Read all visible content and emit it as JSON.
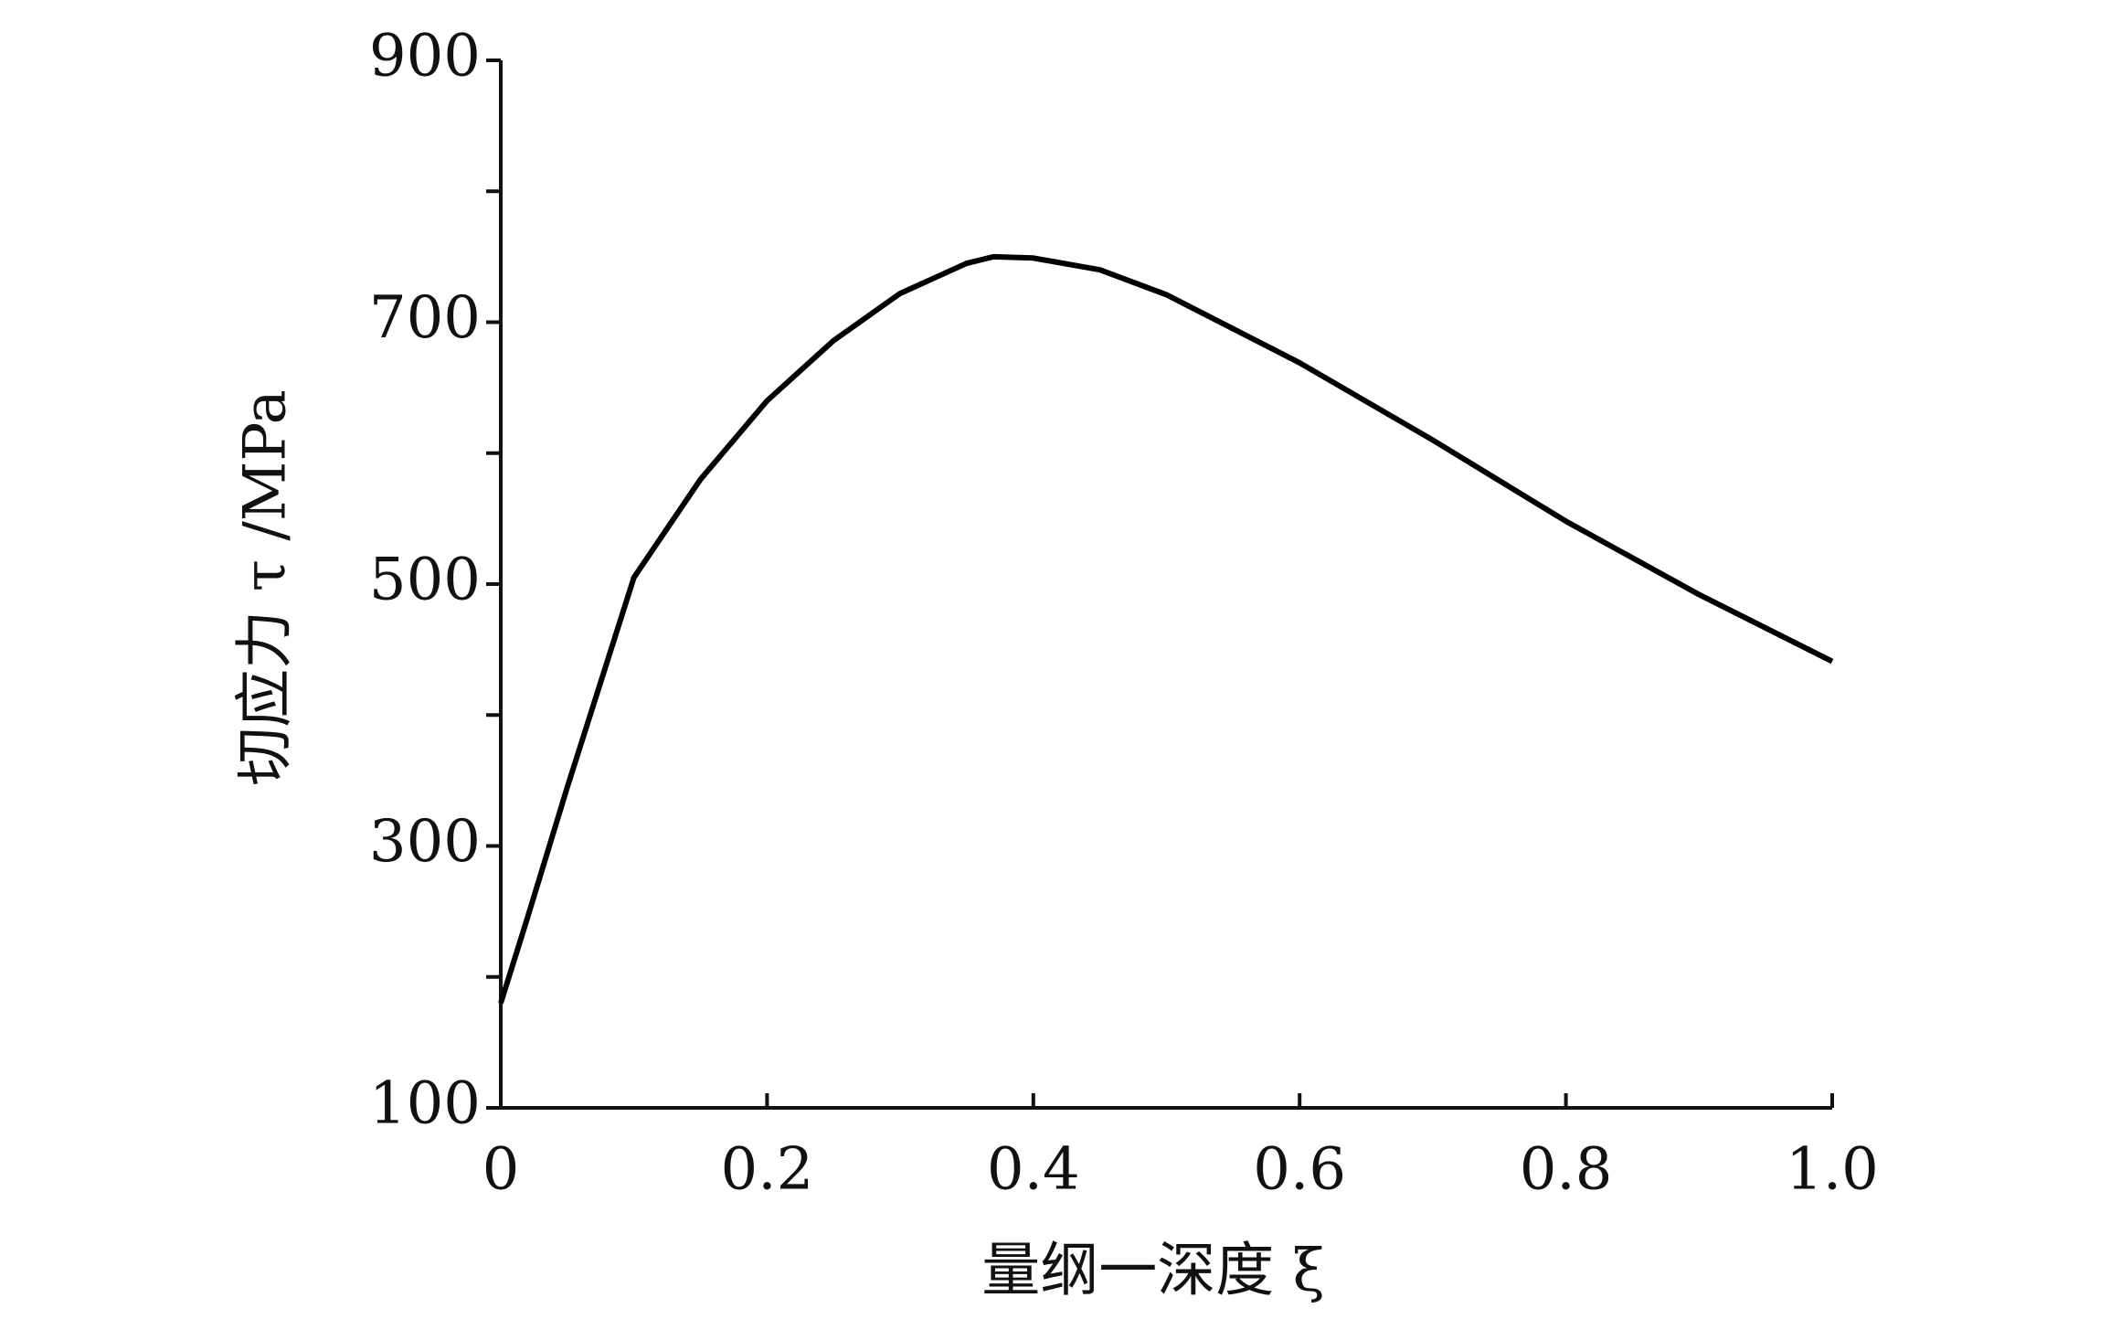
{
  "chart_data": {
    "type": "line",
    "x_label": "量纲一深度 ξ",
    "y_label": "切应力 τ /MPa",
    "x": [
      0,
      0.02,
      0.05,
      0.1,
      0.15,
      0.2,
      0.25,
      0.3,
      0.35,
      0.37,
      0.4,
      0.45,
      0.5,
      0.6,
      0.7,
      0.8,
      0.9,
      1.0
    ],
    "series": [
      {
        "color": "#000000",
        "values": [
          180,
          245,
          345,
          505,
          580,
          640,
          686,
          722,
          745,
          750,
          749,
          740,
          721,
          669,
          610,
          548,
          492,
          441
        ]
      }
    ],
    "xlim": [
      0,
      1.0
    ],
    "xticks": [
      0,
      0.2,
      0.4,
      0.6,
      0.8,
      {
        "value": 1.0,
        "label": "1.0"
      }
    ],
    "ylim": [
      100,
      900
    ],
    "yticks": [
      100,
      300,
      500,
      700,
      900
    ],
    "yminorticks": [
      200,
      400,
      600,
      800
    ]
  }
}
